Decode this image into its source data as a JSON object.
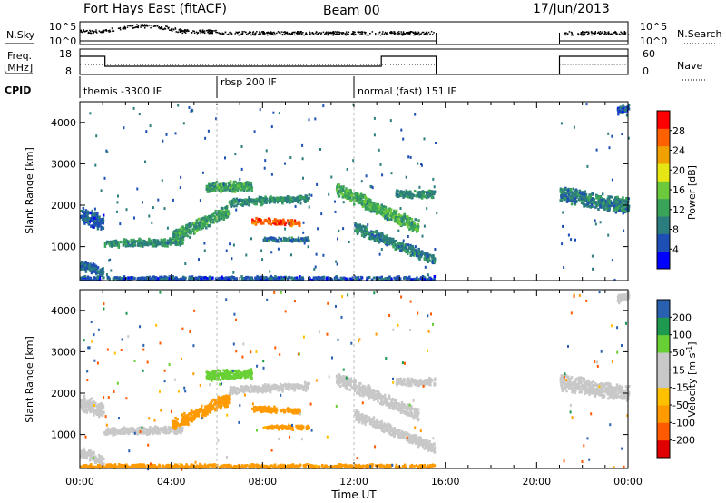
{
  "header": {
    "station": "Fort Hays East (fitACF)",
    "beam": "Beam 00",
    "date": "17/Jun/2013"
  },
  "noise_panel": {
    "left_label": "N.Sky",
    "left_ticks": [
      "10^5",
      "10^0"
    ],
    "right_ticks": [
      "10^5",
      "10^0"
    ],
    "right_label": "N.Search"
  },
  "freq_panel": {
    "left_label_1": "Freq.",
    "left_label_2": "[MHz]",
    "left_ticks": [
      "18",
      "8"
    ],
    "right_ticks": [
      "60",
      "0"
    ],
    "right_label": "Nave"
  },
  "cpid": {
    "label": "CPID",
    "segments": [
      {
        "name": "themis -3300 IF",
        "start_hour": 0,
        "end_hour": 6
      },
      {
        "name": "rbsp 200 IF",
        "start_hour": 6,
        "end_hour": 12
      },
      {
        "name": "normal (fast) 151 IF",
        "start_hour": 12,
        "end_hour": 24
      }
    ]
  },
  "colors": {
    "power_scale": [
      "#0000ff",
      "#1e4fb4",
      "#2c7d7d",
      "#3aa35a",
      "#6cc93c",
      "#e6e614",
      "#f0a000",
      "#ff6000",
      "#ff0000"
    ],
    "velocity_scale": [
      "#e00000",
      "#ff5a00",
      "#ff9a00",
      "#ffc000",
      "#c8c8c8",
      "#c8c8c8",
      "#68d034",
      "#1e9a50",
      "#2a60b0",
      "#1414d8"
    ]
  },
  "chart_data": [
    {
      "type": "heatmap",
      "title": "",
      "quantity": "Power",
      "unit": "dB",
      "xlabel": "",
      "ylabel": "Slant Range [km]",
      "xlim_hours": [
        0,
        24
      ],
      "ylim": [
        180,
        4500
      ],
      "yticks": [
        "1000",
        "2000",
        "3000",
        "4000"
      ],
      "colorbar_label": "Power [dB]",
      "colorbar_ticks": [
        "4",
        "8",
        "12",
        "16",
        "20",
        "24",
        "28"
      ],
      "colorbar_range": [
        0,
        32
      ],
      "data_gap_hours": [
        15.6,
        21.0
      ],
      "features": [
        {
          "start_hour": 0.0,
          "end_hour": 1.0,
          "range_km_start": 1800,
          "range_km_end": 1600,
          "width_km": 300,
          "value": 6
        },
        {
          "start_hour": 0.0,
          "end_hour": 1.0,
          "range_km_start": 600,
          "range_km_end": 400,
          "width_km": 200,
          "value": 7
        },
        {
          "start_hour": 1.0,
          "end_hour": 4.5,
          "range_km_start": 1100,
          "range_km_end": 1150,
          "width_km": 150,
          "value": 10
        },
        {
          "start_hour": 4.0,
          "end_hour": 6.5,
          "range_km_start": 1250,
          "range_km_end": 1900,
          "width_km": 250,
          "value": 12
        },
        {
          "start_hour": 5.5,
          "end_hour": 7.5,
          "range_km_start": 2450,
          "range_km_end": 2500,
          "width_km": 200,
          "value": 12
        },
        {
          "start_hour": 6.5,
          "end_hour": 10.0,
          "range_km_start": 2100,
          "range_km_end": 2200,
          "width_km": 150,
          "value": 10
        },
        {
          "start_hour": 7.5,
          "end_hour": 9.6,
          "range_km_start": 1650,
          "range_km_end": 1600,
          "width_km": 120,
          "value": 27
        },
        {
          "start_hour": 8.0,
          "end_hour": 10.0,
          "range_km_start": 1200,
          "range_km_end": 1200,
          "width_km": 80,
          "value": 8
        },
        {
          "start_hour": 11.2,
          "end_hour": 14.8,
          "range_km_start": 2400,
          "range_km_end": 1500,
          "width_km": 250,
          "value": 13
        },
        {
          "start_hour": 12.0,
          "end_hour": 15.5,
          "range_km_start": 1500,
          "range_km_end": 700,
          "width_km": 200,
          "value": 9
        },
        {
          "start_hour": 13.8,
          "end_hour": 15.5,
          "range_km_start": 2300,
          "range_km_end": 2300,
          "width_km": 150,
          "value": 10
        },
        {
          "start_hour": 0.0,
          "end_hour": 15.5,
          "range_km_start": 250,
          "range_km_end": 250,
          "width_km": 100,
          "value": 6
        },
        {
          "start_hour": 21.0,
          "end_hour": 24.0,
          "range_km_start": 2300,
          "range_km_end": 2000,
          "width_km": 300,
          "value": 9
        },
        {
          "start_hour": 23.5,
          "end_hour": 24.0,
          "range_km_start": 4300,
          "range_km_end": 4400,
          "width_km": 150,
          "value": 6
        }
      ]
    },
    {
      "type": "heatmap",
      "title": "",
      "quantity": "Velocity",
      "unit": "m s-1",
      "xlabel": "Time UT",
      "ylabel": "Slant Range [km]",
      "xlim_hours": [
        0,
        24
      ],
      "xticks": [
        "00:00",
        "04:00",
        "08:00",
        "12:00",
        "16:00",
        "20:00",
        "00:00"
      ],
      "ylim": [
        180,
        4500
      ],
      "yticks": [
        "1000",
        "2000",
        "3000",
        "4000"
      ],
      "colorbar_label_main": "Velocity [",
      "colorbar_label_unit": "m s",
      "colorbar_label_exp": "-1",
      "colorbar_label_close": "]",
      "colorbar_ticks": [
        "-200",
        "-100",
        "-50",
        "-15",
        "15",
        "50",
        "100",
        "200"
      ],
      "data_gap_hours": [
        15.6,
        21.0
      ],
      "features": [
        {
          "start_hour": 0.0,
          "end_hour": 1.0,
          "range_km_start": 1800,
          "range_km_end": 1600,
          "width_km": 300,
          "value": 0
        },
        {
          "start_hour": 0.0,
          "end_hour": 1.0,
          "range_km_start": 600,
          "range_km_end": 400,
          "width_km": 200,
          "value": 0
        },
        {
          "start_hour": 1.0,
          "end_hour": 4.5,
          "range_km_start": 1100,
          "range_km_end": 1150,
          "width_km": 150,
          "value": 0
        },
        {
          "start_hour": 4.0,
          "end_hour": 6.5,
          "range_km_start": 1250,
          "range_km_end": 1900,
          "width_km": 250,
          "value": -60
        },
        {
          "start_hour": 5.5,
          "end_hour": 7.5,
          "range_km_start": 2450,
          "range_km_end": 2500,
          "width_km": 200,
          "value": 30
        },
        {
          "start_hour": 6.5,
          "end_hour": 10.0,
          "range_km_start": 2100,
          "range_km_end": 2200,
          "width_km": 150,
          "value": 0
        },
        {
          "start_hour": 7.5,
          "end_hour": 9.6,
          "range_km_start": 1650,
          "range_km_end": 1600,
          "width_km": 120,
          "value": -60
        },
        {
          "start_hour": 8.0,
          "end_hour": 10.0,
          "range_km_start": 1200,
          "range_km_end": 1200,
          "width_km": 80,
          "value": -60
        },
        {
          "start_hour": 11.2,
          "end_hour": 14.8,
          "range_km_start": 2400,
          "range_km_end": 1500,
          "width_km": 250,
          "value": 0
        },
        {
          "start_hour": 12.0,
          "end_hour": 15.5,
          "range_km_start": 1500,
          "range_km_end": 700,
          "width_km": 200,
          "value": 0
        },
        {
          "start_hour": 13.8,
          "end_hour": 15.5,
          "range_km_start": 2300,
          "range_km_end": 2300,
          "width_km": 150,
          "value": 0
        },
        {
          "start_hour": 0.0,
          "end_hour": 15.5,
          "range_km_start": 250,
          "range_km_end": 250,
          "width_km": 100,
          "value": -60
        },
        {
          "start_hour": 21.0,
          "end_hour": 24.0,
          "range_km_start": 2300,
          "range_km_end": 2000,
          "width_km": 300,
          "value": 0
        },
        {
          "start_hour": 23.5,
          "end_hour": 24.0,
          "range_km_start": 4300,
          "range_km_end": 4400,
          "width_km": 150,
          "value": 0
        }
      ]
    }
  ]
}
